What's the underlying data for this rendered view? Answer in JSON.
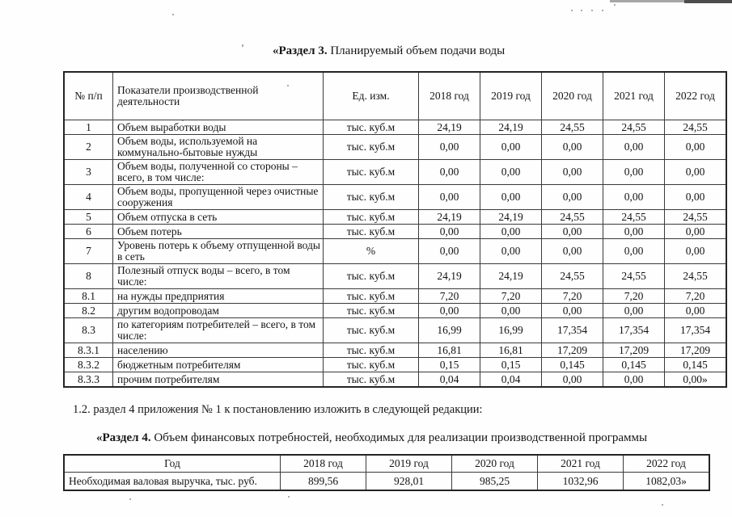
{
  "document": {
    "section3": {
      "title_bold": "«Раздел 3.",
      "title_rest": " Планируемый объем подачи воды"
    },
    "clause_1_2": "1.2. раздел 4 приложения № 1 к постановлению изложить в следующей редакции:",
    "section4": {
      "title_bold": "«Раздел 4.",
      "title_rest": " Объем финансовых потребностей, необходимых для реализации производственной программы"
    }
  },
  "table3": {
    "headers": [
      "№ п/п",
      "Показатели производственной деятельности",
      "Ед. изм.",
      "2018 год",
      "2019 год",
      "2020 год",
      "2021 год",
      "2022 год"
    ],
    "rows": [
      {
        "cells": [
          "1",
          "Объем выработки воды",
          "тыс. куб.м",
          "24,19",
          "24,19",
          "24,55",
          "24,55",
          "24,55"
        ]
      },
      {
        "cells": [
          "2",
          "Объем воды, используемой на коммунально-бытовые нужды",
          "тыс. куб.м",
          "0,00",
          "0,00",
          "0,00",
          "0,00",
          "0,00"
        ]
      },
      {
        "cells": [
          "3",
          "Объем воды, полученной со стороны – всего, в том числе:",
          "тыс. куб.м",
          "0,00",
          "0,00",
          "0,00",
          "0,00",
          "0,00"
        ]
      },
      {
        "cells": [
          "4",
          "Объем воды, пропущенной через очистные сооружения",
          "тыс. куб.м",
          "0,00",
          "0,00",
          "0,00",
          "0,00",
          "0,00"
        ]
      },
      {
        "cells": [
          "5",
          "Объем отпуска в сеть",
          "тыс. куб.м",
          "24,19",
          "24,19",
          "24,55",
          "24,55",
          "24,55"
        ]
      },
      {
        "cells": [
          "6",
          "Объем потерь",
          "тыс. куб.м",
          "0,00",
          "0,00",
          "0,00",
          "0,00",
          "0,00"
        ]
      },
      {
        "cells": [
          "7",
          "Уровень потерь к объему отпущенной воды в сеть",
          "%",
          "0,00",
          "0,00",
          "0,00",
          "0,00",
          "0,00"
        ]
      },
      {
        "cells": [
          "8",
          "Полезный отпуск воды – всего, в том числе:",
          "тыс. куб.м",
          "24,19",
          "24,19",
          "24,55",
          "24,55",
          "24,55"
        ]
      },
      {
        "cells": [
          "8.1",
          "на нужды предприятия",
          "тыс. куб.м",
          "7,20",
          "7,20",
          "7,20",
          "7,20",
          "7,20"
        ]
      },
      {
        "cells": [
          "8.2",
          "другим водопроводам",
          "тыс. куб.м",
          "0,00",
          "0,00",
          "0,00",
          "0,00",
          "0,00"
        ]
      },
      {
        "cells": [
          "8.3",
          "по категориям потребителей – всего, в том числе:",
          "тыс. куб.м",
          "16,99",
          "16,99",
          "17,354",
          "17,354",
          "17,354"
        ]
      },
      {
        "cells": [
          "8.3.1",
          "населению",
          "тыс. куб.м",
          "16,81",
          "16,81",
          "17,209",
          "17,209",
          "17,209"
        ]
      },
      {
        "cells": [
          "8.3.2",
          "бюджетным потребителям",
          "тыс. куб.м",
          "0,15",
          "0,15",
          "0,145",
          "0,145",
          "0,145"
        ]
      },
      {
        "cells": [
          "8.3.3",
          "прочим потребителям",
          "тыс. куб.м",
          "0,04",
          "0,04",
          "0,00",
          "0,00",
          "0,00»"
        ]
      }
    ]
  },
  "table4": {
    "headers": [
      "Год",
      "2018 год",
      "2019 год",
      "2020 год",
      "2021 год",
      "2022 год"
    ],
    "rows": [
      {
        "cells": [
          "Необходимая валовая выручка, тыс. руб.",
          "899,56",
          "928,01",
          "985,25",
          "1032,96",
          "1082,03»"
        ]
      }
    ]
  }
}
